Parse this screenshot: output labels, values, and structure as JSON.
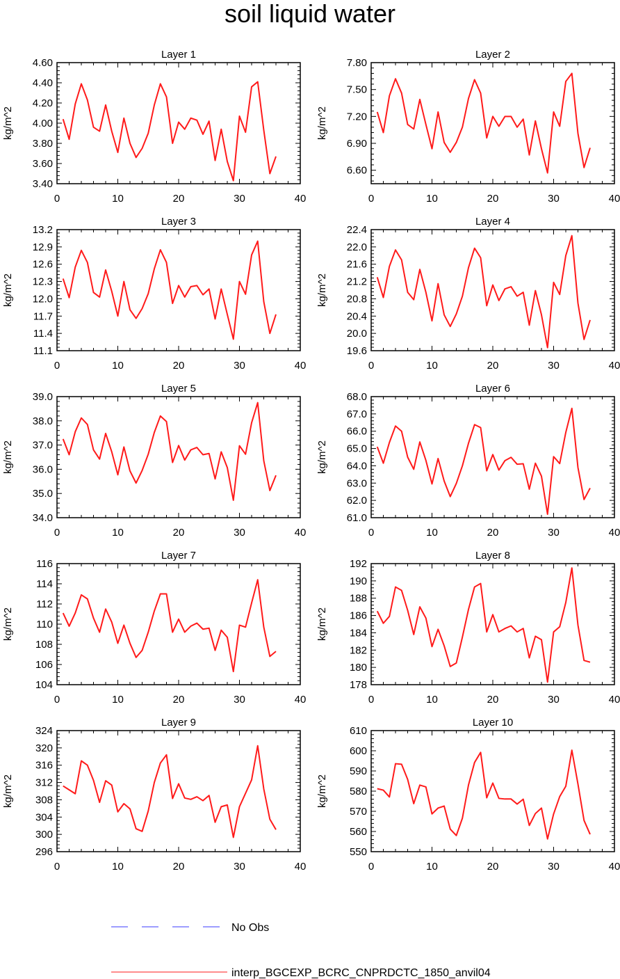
{
  "figure_title": "soil liquid water",
  "legend": [
    {
      "label": "No Obs",
      "color": "#3b3bff",
      "style": "dashed"
    },
    {
      "label": "interp_BGCEXP_BCRC_CNPRDCTC_1850_anvil04",
      "color": "#ff1a1a",
      "style": "solid"
    }
  ],
  "chart_data": [
    {
      "type": "line",
      "title": "Layer 1",
      "ylabel": "kg/m^2",
      "xlim": [
        0,
        40
      ],
      "ylim": [
        3.4,
        4.6
      ],
      "xticks": [
        "0",
        "10",
        "20",
        "30",
        "40"
      ],
      "yticks": [
        "3.40",
        "3.60",
        "3.80",
        "4.00",
        "4.20",
        "4.40",
        "4.60"
      ],
      "series": [
        {
          "x": [
            1,
            2,
            3,
            4,
            5,
            6,
            7,
            8,
            9,
            10,
            11,
            12,
            13,
            14,
            15,
            16,
            17,
            18,
            19,
            20,
            21,
            22,
            23,
            24,
            25,
            26,
            27,
            28,
            29,
            30,
            31,
            32,
            33,
            34,
            35,
            36
          ],
          "values": [
            4.04,
            3.84,
            4.19,
            4.39,
            4.23,
            3.96,
            3.92,
            4.18,
            3.92,
            3.71,
            4.05,
            3.8,
            3.66,
            3.75,
            3.9,
            4.18,
            4.39,
            4.26,
            3.8,
            4.01,
            3.94,
            4.05,
            4.03,
            3.89,
            4.02,
            3.63,
            3.94,
            3.62,
            3.43,
            4.07,
            3.91,
            4.36,
            4.41,
            3.93,
            3.5,
            3.67
          ]
        }
      ]
    },
    {
      "type": "line",
      "title": "Layer 2",
      "ylabel": "kg/m^2",
      "xlim": [
        0,
        40
      ],
      "ylim": [
        6.45,
        7.8
      ],
      "xticks": [
        "0",
        "10",
        "20",
        "30",
        "40"
      ],
      "yticks": [
        "6.60",
        "6.90",
        "7.20",
        "7.50",
        "7.80"
      ],
      "series": [
        {
          "x": [
            1,
            2,
            3,
            4,
            5,
            6,
            7,
            8,
            9,
            10,
            11,
            12,
            13,
            14,
            15,
            16,
            17,
            18,
            19,
            20,
            21,
            22,
            23,
            24,
            25,
            26,
            27,
            28,
            29,
            30,
            31,
            32,
            33,
            34,
            35,
            36
          ],
          "values": [
            7.25,
            7.02,
            7.43,
            7.62,
            7.46,
            7.11,
            7.06,
            7.39,
            7.11,
            6.84,
            7.25,
            6.91,
            6.8,
            6.91,
            7.08,
            7.4,
            7.61,
            7.46,
            6.96,
            7.2,
            7.09,
            7.2,
            7.2,
            7.08,
            7.17,
            6.77,
            7.15,
            6.84,
            6.57,
            7.25,
            7.09,
            7.59,
            7.68,
            7.01,
            6.63,
            6.85
          ]
        }
      ]
    },
    {
      "type": "line",
      "title": "Layer 3",
      "ylabel": "kg/m^2",
      "xlim": [
        0,
        40
      ],
      "ylim": [
        11.1,
        13.2
      ],
      "xticks": [
        "0",
        "10",
        "20",
        "30",
        "40"
      ],
      "yticks": [
        "11.1",
        "11.4",
        "11.7",
        "12.0",
        "12.3",
        "12.6",
        "12.9",
        "13.2"
      ],
      "series": [
        {
          "x": [
            1,
            2,
            3,
            4,
            5,
            6,
            7,
            8,
            9,
            10,
            11,
            12,
            13,
            14,
            15,
            16,
            17,
            18,
            19,
            20,
            21,
            22,
            23,
            24,
            25,
            26,
            27,
            28,
            29,
            30,
            31,
            32,
            33,
            34,
            35,
            36
          ],
          "values": [
            12.35,
            12.02,
            12.55,
            12.84,
            12.63,
            12.11,
            12.03,
            12.5,
            12.13,
            11.7,
            12.3,
            11.81,
            11.66,
            11.83,
            12.09,
            12.52,
            12.85,
            12.63,
            11.92,
            12.23,
            12.03,
            12.21,
            12.23,
            12.07,
            12.17,
            11.65,
            12.17,
            11.73,
            11.3,
            12.3,
            12.08,
            12.76,
            13.0,
            11.95,
            11.4,
            11.73
          ]
        }
      ]
    },
    {
      "type": "line",
      "title": "Layer 4",
      "ylabel": "kg/m^2",
      "xlim": [
        0,
        40
      ],
      "ylim": [
        19.6,
        22.4
      ],
      "xticks": [
        "0",
        "10",
        "20",
        "30",
        "40"
      ],
      "yticks": [
        "19.6",
        "20.0",
        "20.4",
        "20.8",
        "21.2",
        "21.6",
        "22.0",
        "22.4"
      ],
      "series": [
        {
          "x": [
            1,
            2,
            3,
            4,
            5,
            6,
            7,
            8,
            9,
            10,
            11,
            12,
            13,
            14,
            15,
            16,
            17,
            18,
            19,
            20,
            21,
            22,
            23,
            24,
            25,
            26,
            27,
            28,
            29,
            30,
            31,
            32,
            33,
            34,
            35,
            36
          ],
          "values": [
            21.3,
            20.83,
            21.55,
            21.93,
            21.7,
            20.95,
            20.78,
            21.48,
            20.95,
            20.29,
            21.15,
            20.43,
            20.16,
            20.45,
            20.86,
            21.52,
            21.97,
            21.75,
            20.64,
            21.12,
            20.76,
            21.03,
            21.08,
            20.86,
            20.95,
            20.19,
            20.99,
            20.43,
            19.67,
            21.18,
            20.9,
            21.8,
            22.26,
            20.7,
            19.86,
            20.31
          ]
        }
      ]
    },
    {
      "type": "line",
      "title": "Layer 5",
      "ylabel": "kg/m^2",
      "xlim": [
        0,
        40
      ],
      "ylim": [
        34.0,
        39.0
      ],
      "xticks": [
        "0",
        "10",
        "20",
        "30",
        "40"
      ],
      "yticks": [
        "34.0",
        "35.0",
        "36.0",
        "37.0",
        "38.0",
        "39.0"
      ],
      "series": [
        {
          "x": [
            1,
            2,
            3,
            4,
            5,
            6,
            7,
            8,
            9,
            10,
            11,
            12,
            13,
            14,
            15,
            16,
            17,
            18,
            19,
            20,
            21,
            22,
            23,
            24,
            25,
            26,
            27,
            28,
            29,
            30,
            31,
            32,
            33,
            34,
            35,
            36
          ],
          "values": [
            37.25,
            36.6,
            37.55,
            38.12,
            37.85,
            36.8,
            36.42,
            37.48,
            36.72,
            35.77,
            36.92,
            35.93,
            35.43,
            35.95,
            36.62,
            37.52,
            38.2,
            37.97,
            36.28,
            36.98,
            36.38,
            36.8,
            36.9,
            36.6,
            36.65,
            35.6,
            36.72,
            36.07,
            34.72,
            36.97,
            36.62,
            37.92,
            38.75,
            36.35,
            35.12,
            35.75
          ]
        }
      ]
    },
    {
      "type": "line",
      "title": "Layer 6",
      "ylabel": "kg/m^2",
      "xlim": [
        0,
        40
      ],
      "ylim": [
        61.0,
        68.0
      ],
      "xticks": [
        "0",
        "10",
        "20",
        "30",
        "40"
      ],
      "yticks": [
        "61.0",
        "62.0",
        "63.0",
        "64.0",
        "65.0",
        "66.0",
        "67.0",
        "68.0"
      ],
      "series": [
        {
          "x": [
            1,
            2,
            3,
            4,
            5,
            6,
            7,
            8,
            9,
            10,
            11,
            12,
            13,
            14,
            15,
            16,
            17,
            18,
            19,
            20,
            21,
            22,
            23,
            24,
            25,
            26,
            27,
            28,
            29,
            30,
            31,
            32,
            33,
            34,
            35,
            36
          ],
          "values": [
            65.1,
            64.15,
            65.35,
            66.3,
            66.0,
            64.5,
            63.8,
            65.38,
            64.31,
            62.95,
            64.42,
            63.12,
            62.22,
            62.98,
            64.0,
            65.3,
            66.38,
            66.21,
            63.71,
            64.65,
            63.75,
            64.3,
            64.49,
            64.09,
            64.12,
            62.65,
            64.15,
            63.4,
            61.2,
            64.53,
            64.13,
            65.93,
            67.32,
            63.9,
            62.05,
            62.71
          ]
        }
      ]
    },
    {
      "type": "line",
      "title": "Layer 7",
      "ylabel": "kg/m^2",
      "xlim": [
        0,
        40
      ],
      "ylim": [
        104,
        116
      ],
      "xticks": [
        "0",
        "10",
        "20",
        "30",
        "40"
      ],
      "yticks": [
        "104",
        "106",
        "108",
        "110",
        "112",
        "114",
        "116"
      ],
      "series": [
        {
          "x": [
            1,
            2,
            3,
            4,
            5,
            6,
            7,
            8,
            9,
            10,
            11,
            12,
            13,
            14,
            15,
            16,
            17,
            18,
            19,
            20,
            21,
            22,
            23,
            24,
            25,
            26,
            27,
            28,
            29,
            30,
            31,
            32,
            33,
            34,
            35,
            36
          ],
          "values": [
            111.1,
            109.8,
            111.1,
            112.9,
            112.5,
            110.6,
            109.2,
            111.5,
            110.2,
            108.1,
            109.9,
            108.1,
            106.7,
            107.4,
            109.2,
            111.3,
            113.0,
            113.0,
            109.2,
            110.5,
            109.2,
            109.8,
            110.1,
            109.5,
            109.6,
            107.4,
            109.4,
            108.7,
            105.3,
            109.9,
            109.7,
            112.1,
            114.4,
            109.7,
            106.8,
            107.3
          ]
        }
      ]
    },
    {
      "type": "line",
      "title": "Layer 8",
      "ylabel": "kg/m^2",
      "xlim": [
        0,
        40
      ],
      "ylim": [
        178,
        192
      ],
      "xticks": [
        "0",
        "10",
        "20",
        "30",
        "40"
      ],
      "yticks": [
        "178",
        "180",
        "182",
        "184",
        "186",
        "188",
        "190",
        "192"
      ],
      "series": [
        {
          "x": [
            1,
            2,
            3,
            4,
            5,
            6,
            7,
            8,
            9,
            10,
            11,
            12,
            13,
            14,
            15,
            16,
            17,
            18,
            19,
            20,
            21,
            22,
            23,
            24,
            25,
            26,
            27,
            28,
            29,
            30,
            31,
            32,
            33,
            34,
            35,
            36
          ],
          "values": [
            186.5,
            185.1,
            185.9,
            189.3,
            188.9,
            186.6,
            183.8,
            187.0,
            185.7,
            182.4,
            184.4,
            182.5,
            180.1,
            180.5,
            183.5,
            186.7,
            189.3,
            189.7,
            184.1,
            186.1,
            184.1,
            184.5,
            184.8,
            184.1,
            184.5,
            181.1,
            183.6,
            183.2,
            178.3,
            184.1,
            184.7,
            187.5,
            191.5,
            184.9,
            180.8,
            180.6
          ]
        }
      ]
    },
    {
      "type": "line",
      "title": "Layer 9",
      "ylabel": "kg/m^2",
      "xlim": [
        0,
        40
      ],
      "ylim": [
        296,
        324
      ],
      "xticks": [
        "0",
        "10",
        "20",
        "30",
        "40"
      ],
      "yticks": [
        "296",
        "300",
        "304",
        "308",
        "312",
        "316",
        "320",
        "324"
      ],
      "series": [
        {
          "x": [
            1,
            2,
            3,
            4,
            5,
            6,
            7,
            8,
            9,
            10,
            11,
            12,
            13,
            14,
            15,
            16,
            17,
            18,
            19,
            20,
            21,
            22,
            23,
            24,
            25,
            26,
            27,
            28,
            29,
            30,
            31,
            32,
            33,
            34,
            35,
            36
          ],
          "values": [
            311.2,
            310.3,
            309.4,
            317.0,
            316.0,
            312.5,
            307.4,
            312.4,
            311.4,
            305.2,
            307.1,
            305.9,
            301.3,
            300.7,
            305.4,
            312.0,
            316.5,
            318.4,
            308.3,
            311.7,
            308.4,
            308.1,
            308.7,
            307.8,
            309.0,
            302.8,
            306.4,
            306.8,
            299.3,
            306.4,
            309.5,
            312.6,
            320.5,
            310.5,
            303.5,
            301.1
          ]
        }
      ]
    },
    {
      "type": "line",
      "title": "Layer 10",
      "ylabel": "kg/m^2",
      "xlim": [
        0,
        40
      ],
      "ylim": [
        550,
        610
      ],
      "xticks": [
        "0",
        "10",
        "20",
        "30",
        "40"
      ],
      "yticks": [
        "550",
        "560",
        "570",
        "580",
        "590",
        "600",
        "610"
      ],
      "series": [
        {
          "x": [
            1,
            2,
            3,
            4,
            5,
            6,
            7,
            8,
            9,
            10,
            11,
            12,
            13,
            14,
            15,
            16,
            17,
            18,
            19,
            20,
            21,
            22,
            23,
            24,
            25,
            26,
            27,
            28,
            29,
            30,
            31,
            32,
            33,
            34,
            35,
            36
          ],
          "values": [
            581.2,
            580.5,
            577.1,
            593.6,
            593.3,
            585.8,
            573.8,
            583.0,
            582.1,
            568.7,
            571.6,
            572.6,
            561.2,
            558.0,
            566.6,
            583.0,
            594.2,
            599.2,
            576.7,
            584.0,
            576.4,
            576.1,
            576.1,
            573.6,
            576.0,
            563.0,
            568.9,
            571.6,
            556.3,
            568.7,
            577.3,
            582.4,
            600.3,
            583.5,
            565.5,
            558.6
          ]
        }
      ]
    }
  ]
}
